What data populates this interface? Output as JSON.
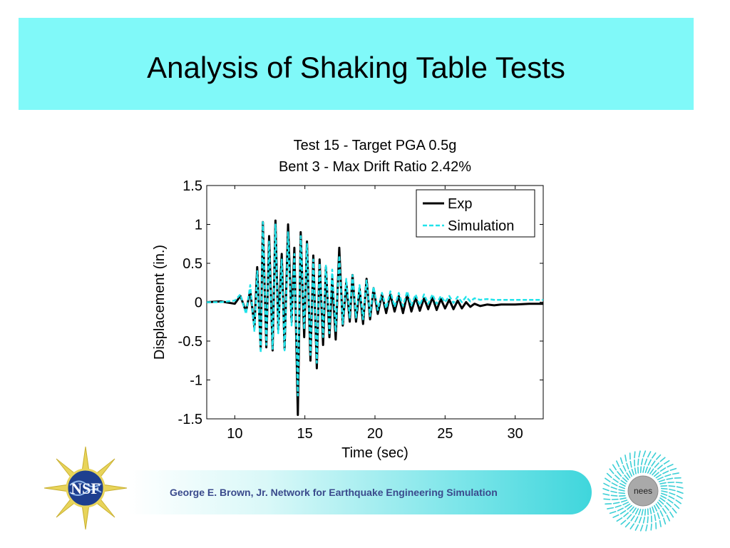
{
  "slide": {
    "title": "Analysis of Shaking Table Tests",
    "footer_text": "George E. Brown, Jr. Network for Earthquake Engineering Simulation",
    "logos": {
      "nsf": {
        "icon": "nsf-logo",
        "text": "NSF"
      },
      "nees": {
        "icon": "nees-logo",
        "text": "nees"
      }
    },
    "colors": {
      "header_bg": "#80f9f9",
      "footer_text": "#3a4a8c"
    }
  },
  "chart_data": {
    "type": "line",
    "title": [
      "Test 15 - Target PGA 0.5g",
      "Bent 3 - Max Drift Ratio 2.42%"
    ],
    "xlabel": "Time (sec)",
    "ylabel": "Displacement (in.)",
    "xlim": [
      8,
      32
    ],
    "ylim": [
      -1.5,
      1.5
    ],
    "xticks": [
      10,
      15,
      20,
      25,
      30
    ],
    "yticks": [
      -1.5,
      -1,
      -0.5,
      0,
      0.5,
      1,
      1.5
    ],
    "ytick_labels": [
      "-1.5",
      "-1",
      "-0.5",
      "0",
      "0.5",
      "1",
      "1.5"
    ],
    "grid": false,
    "legend_position": "top-right",
    "series": [
      {
        "name": "Exp",
        "color": "#000000",
        "style": "solid",
        "points": [
          [
            8.0,
            0
          ],
          [
            9.0,
            0.01
          ],
          [
            10.0,
            -0.02
          ],
          [
            10.4,
            0.08
          ],
          [
            10.8,
            -0.12
          ],
          [
            11.1,
            0.15
          ],
          [
            11.4,
            -0.32
          ],
          [
            11.6,
            0.45
          ],
          [
            11.85,
            -0.6
          ],
          [
            12.0,
            1.03
          ],
          [
            12.25,
            -0.58
          ],
          [
            12.45,
            0.85
          ],
          [
            12.7,
            -0.62
          ],
          [
            12.9,
            1.05
          ],
          [
            13.1,
            -0.35
          ],
          [
            13.35,
            0.62
          ],
          [
            13.55,
            -0.6
          ],
          [
            13.8,
            1.0
          ],
          [
            14.05,
            -0.25
          ],
          [
            14.25,
            0.7
          ],
          [
            14.5,
            -1.45
          ],
          [
            14.7,
            0.9
          ],
          [
            14.95,
            -0.45
          ],
          [
            15.15,
            0.78
          ],
          [
            15.4,
            -0.75
          ],
          [
            15.6,
            0.6
          ],
          [
            15.85,
            -0.85
          ],
          [
            16.05,
            0.55
          ],
          [
            16.3,
            -0.55
          ],
          [
            16.5,
            0.45
          ],
          [
            16.75,
            -0.45
          ],
          [
            16.95,
            0.3
          ],
          [
            17.2,
            -0.48
          ],
          [
            17.45,
            0.7
          ],
          [
            17.7,
            -0.3
          ],
          [
            17.95,
            0.25
          ],
          [
            18.2,
            -0.25
          ],
          [
            18.4,
            0.35
          ],
          [
            18.65,
            -0.25
          ],
          [
            18.9,
            0.18
          ],
          [
            19.15,
            -0.28
          ],
          [
            19.4,
            0.3
          ],
          [
            19.65,
            -0.22
          ],
          [
            19.9,
            0.18
          ],
          [
            20.2,
            -0.15
          ],
          [
            20.5,
            0.1
          ],
          [
            20.8,
            -0.14
          ],
          [
            21.1,
            0.1
          ],
          [
            21.4,
            -0.12
          ],
          [
            21.7,
            0.08
          ],
          [
            22.0,
            -0.14
          ],
          [
            22.3,
            0.1
          ],
          [
            22.6,
            -0.12
          ],
          [
            22.9,
            0.06
          ],
          [
            23.2,
            -0.11
          ],
          [
            23.5,
            0.05
          ],
          [
            23.8,
            -0.09
          ],
          [
            24.1,
            0.06
          ],
          [
            24.4,
            -0.1
          ],
          [
            24.7,
            0.04
          ],
          [
            25.0,
            -0.08
          ],
          [
            25.3,
            0.03
          ],
          [
            25.6,
            -0.09
          ],
          [
            25.9,
            0.02
          ],
          [
            26.2,
            -0.08
          ],
          [
            26.5,
            0.0
          ],
          [
            26.8,
            -0.06
          ],
          [
            27.1,
            -0.02
          ],
          [
            27.5,
            -0.05
          ],
          [
            28.0,
            -0.03
          ],
          [
            28.5,
            -0.04
          ],
          [
            29.0,
            -0.03
          ],
          [
            30.0,
            -0.03
          ],
          [
            31.0,
            -0.02
          ],
          [
            32.0,
            -0.02
          ]
        ]
      },
      {
        "name": "Simulation",
        "color": "#22e3ea",
        "style": "dashed",
        "points": [
          [
            8.0,
            0
          ],
          [
            9.0,
            0.0
          ],
          [
            10.0,
            0.02
          ],
          [
            10.4,
            0.1
          ],
          [
            10.8,
            -0.15
          ],
          [
            11.1,
            0.22
          ],
          [
            11.4,
            -0.38
          ],
          [
            11.6,
            0.4
          ],
          [
            11.85,
            -0.65
          ],
          [
            12.0,
            1.03
          ],
          [
            12.25,
            -0.55
          ],
          [
            12.45,
            0.78
          ],
          [
            12.7,
            -0.6
          ],
          [
            12.9,
            1.0
          ],
          [
            13.1,
            -0.4
          ],
          [
            13.35,
            0.55
          ],
          [
            13.55,
            -0.62
          ],
          [
            13.8,
            0.9
          ],
          [
            14.05,
            -0.3
          ],
          [
            14.25,
            0.62
          ],
          [
            14.5,
            -1.2
          ],
          [
            14.7,
            0.85
          ],
          [
            14.95,
            -0.35
          ],
          [
            15.15,
            0.75
          ],
          [
            15.4,
            -0.68
          ],
          [
            15.6,
            0.55
          ],
          [
            15.85,
            -0.78
          ],
          [
            16.05,
            0.5
          ],
          [
            16.3,
            -0.45
          ],
          [
            16.5,
            0.48
          ],
          [
            16.75,
            -0.4
          ],
          [
            16.95,
            0.42
          ],
          [
            17.2,
            -0.38
          ],
          [
            17.45,
            0.6
          ],
          [
            17.7,
            -0.28
          ],
          [
            17.95,
            0.3
          ],
          [
            18.2,
            -0.2
          ],
          [
            18.4,
            0.35
          ],
          [
            18.65,
            -0.2
          ],
          [
            18.9,
            0.22
          ],
          [
            19.15,
            -0.22
          ],
          [
            19.4,
            0.28
          ],
          [
            19.65,
            -0.18
          ],
          [
            19.9,
            0.2
          ],
          [
            20.2,
            -0.1
          ],
          [
            20.5,
            0.12
          ],
          [
            20.8,
            -0.08
          ],
          [
            21.1,
            0.14
          ],
          [
            21.4,
            -0.06
          ],
          [
            21.7,
            0.12
          ],
          [
            22.0,
            -0.05
          ],
          [
            22.3,
            0.14
          ],
          [
            22.6,
            -0.04
          ],
          [
            22.9,
            0.1
          ],
          [
            23.2,
            -0.04
          ],
          [
            23.5,
            0.1
          ],
          [
            23.8,
            -0.02
          ],
          [
            24.1,
            0.1
          ],
          [
            24.4,
            -0.02
          ],
          [
            24.7,
            0.08
          ],
          [
            25.0,
            0.0
          ],
          [
            25.3,
            0.08
          ],
          [
            25.6,
            -0.01
          ],
          [
            25.9,
            0.07
          ],
          [
            26.2,
            0.0
          ],
          [
            26.5,
            0.07
          ],
          [
            26.8,
            0.01
          ],
          [
            27.1,
            0.05
          ],
          [
            27.5,
            0.03
          ],
          [
            28.0,
            0.04
          ],
          [
            28.5,
            0.03
          ],
          [
            29.0,
            0.03
          ],
          [
            30.0,
            0.03
          ],
          [
            31.0,
            0.03
          ],
          [
            32.0,
            0.03
          ]
        ]
      }
    ]
  }
}
